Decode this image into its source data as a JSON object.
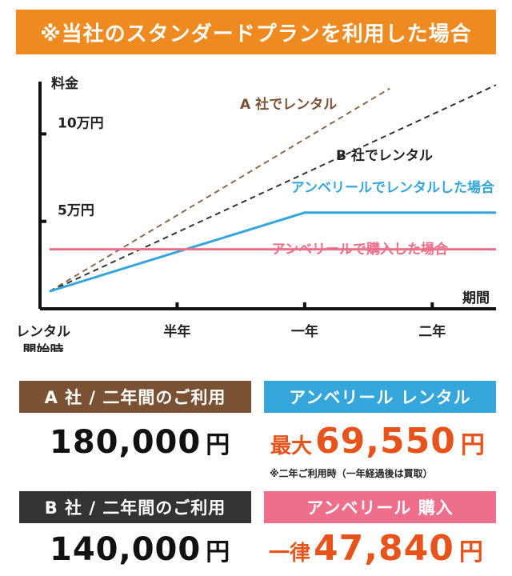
{
  "banner": "※当社のスタンダードプランを利用した場合",
  "colors": {
    "banner": "#ee8a1f",
    "company_a": "#7a5233",
    "company_b": "#333333",
    "rental": "#34a6dc",
    "purchase": "#ee6f8c",
    "price_accent": "#e8531c"
  },
  "chart_data": {
    "type": "line",
    "title": "",
    "xlabel": "期間",
    "ylabel": "料金",
    "x_ticks": [
      {
        "x": 0,
        "label": "レンタル\n開始時"
      },
      {
        "x": 6,
        "label": "半年"
      },
      {
        "x": 12,
        "label": "一年"
      },
      {
        "x": 18,
        "label": "二年"
      }
    ],
    "y_ticks": [
      {
        "y": 50000,
        "label": "5万円"
      },
      {
        "y": 100000,
        "label": "10万円"
      }
    ],
    "xlim": [
      0,
      21
    ],
    "ylim": [
      0,
      140000
    ],
    "series": [
      {
        "name": "A 社でレンタル",
        "style": "dashed",
        "color": "#8b6a4a",
        "x": [
          0,
          16
        ],
        "y": [
          10000,
          126000
        ]
      },
      {
        "name": "B 社でレンタル",
        "style": "dashed",
        "color": "#333333",
        "x": [
          0,
          21
        ],
        "y": [
          10000,
          128000
        ]
      },
      {
        "name": "アンベリールでレンタルした場合",
        "style": "solid",
        "color": "#34a6dc",
        "x": [
          0,
          12,
          21
        ],
        "y": [
          10000,
          55000,
          55000
        ]
      },
      {
        "name": "アンベリールで購入した場合",
        "style": "solid",
        "color": "#ee6f8c",
        "x": [
          0,
          21
        ],
        "y": [
          34000,
          34000
        ]
      }
    ]
  },
  "summary": {
    "a": {
      "header": "A 社 / 二年間のご利用",
      "amount": "180,000",
      "unit": "円"
    },
    "b": {
      "header": "B 社 / 二年間のご利用",
      "amount": "140,000",
      "unit": "円"
    },
    "rental": {
      "header": "アンベリール レンタル",
      "prefix": "最大",
      "amount": "69,550",
      "unit": "円",
      "note": "※二年ご利用時（一年経過後は買取）"
    },
    "purchase": {
      "header": "アンベリール 購入",
      "prefix": "一律",
      "amount": "47,840",
      "unit": "円"
    }
  }
}
